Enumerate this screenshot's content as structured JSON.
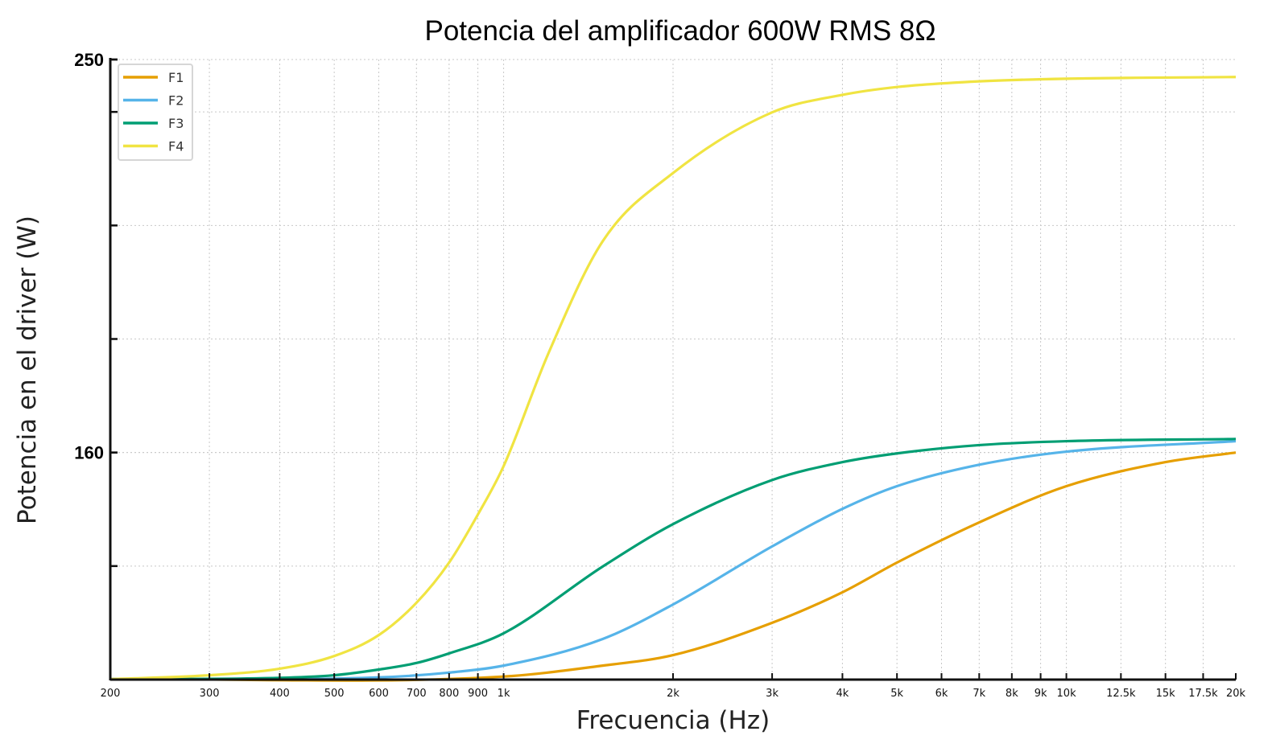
{
  "chart_data": {
    "type": "line",
    "title": "Potencia del amplificador 600W RMS 8Ω",
    "xlabel": "Frecuencia (Hz)",
    "ylabel": "Potencia en el driver (W)",
    "xscale": "log",
    "xlim": [
      200,
      20000
    ],
    "ylim": [
      108,
      250
    ],
    "grid": true,
    "legend_position": "top-left",
    "x_ticks": [
      200,
      300,
      400,
      500,
      600,
      700,
      800,
      900,
      1000,
      2000,
      3000,
      4000,
      5000,
      6000,
      7000,
      8000,
      9000,
      10000,
      12500,
      15000,
      17500,
      20000
    ],
    "x_tick_labels": [
      "200",
      "300",
      "400",
      "500",
      "600",
      "700",
      "800",
      "900",
      "1k",
      "2k",
      "3k",
      "4k",
      "5k",
      "6k",
      "7k",
      "8k",
      "9k",
      "10k",
      "12.5k",
      "15k",
      "17.5k",
      "20k"
    ],
    "y_ticks": [
      108,
      134,
      160,
      186,
      212,
      238
    ],
    "y_tick_labels": [
      {
        "value": 160,
        "label": "160"
      },
      {
        "value": 250,
        "label": "250"
      }
    ],
    "series": [
      {
        "name": "F1",
        "color": "#E69F00",
        "x": [
          200,
          1000,
          1500,
          2000,
          3000,
          4000,
          5000,
          7000,
          10000,
          15000,
          20000
        ],
        "y": [
          108.1,
          108.7,
          111.2,
          113.6,
          121,
          128,
          134.8,
          144,
          152.3,
          157.8,
          160
        ]
      },
      {
        "name": "F2",
        "color": "#56B4E9",
        "x": [
          200,
          600,
          800,
          1000,
          1500,
          2000,
          3000,
          4000,
          5000,
          7000,
          10000,
          20000
        ],
        "y": [
          108.1,
          108.5,
          109.6,
          111.2,
          117.3,
          125.2,
          138.5,
          147.1,
          152.3,
          157.2,
          160.2,
          162.6
        ]
      },
      {
        "name": "F3",
        "color": "#009E73",
        "x": [
          200,
          400,
          500,
          600,
          700,
          800,
          1000,
          1500,
          2000,
          3000,
          4000,
          5000,
          7000,
          10000,
          20000
        ],
        "y": [
          108.1,
          108.4,
          109,
          110.3,
          111.8,
          114,
          118.6,
          133.9,
          143.6,
          153.7,
          157.8,
          159.8,
          161.7,
          162.6,
          163.1
        ]
      },
      {
        "name": "F4",
        "color": "#F0E442",
        "x": [
          200,
          300,
          400,
          500,
          600,
          700,
          800,
          900,
          1000,
          1200,
          1500,
          2000,
          3000,
          4000,
          5000,
          7000,
          10000,
          20000
        ],
        "y": [
          108.1,
          109,
          110.5,
          113.4,
          118.2,
          125.6,
          134.8,
          145.8,
          156.9,
          182.6,
          208.4,
          224,
          237.9,
          241.9,
          243.7,
          245,
          245.6,
          246
        ]
      }
    ]
  }
}
